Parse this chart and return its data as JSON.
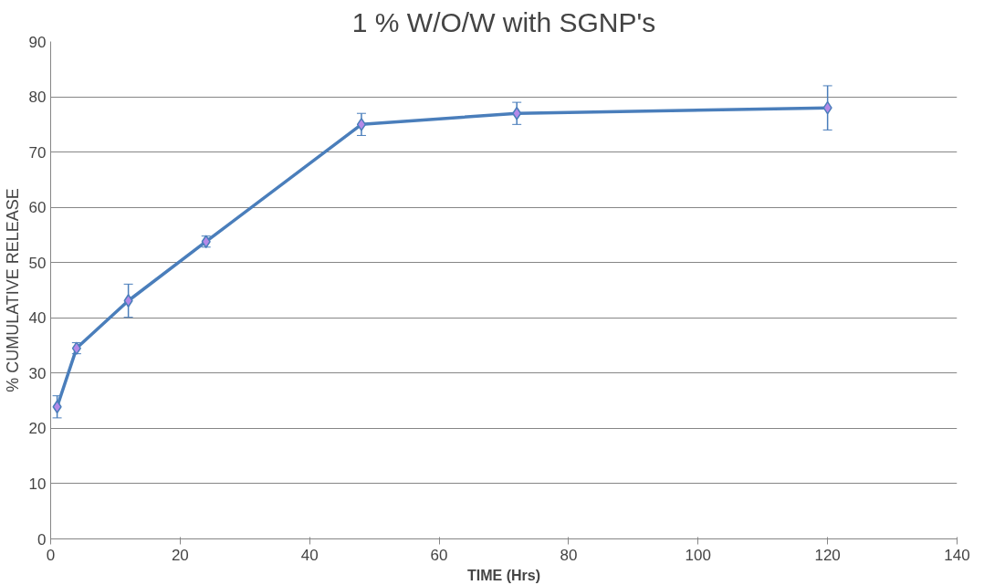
{
  "chart_data": {
    "type": "line",
    "title": "1 % W/O/W with SGNP's",
    "xlabel": "TIME (Hrs)",
    "ylabel": "% CUMULATIVE RELEASE",
    "x": [
      1,
      4,
      12,
      24,
      48,
      72,
      120
    ],
    "series": [
      {
        "color": "#4a7ebb",
        "values": [
          23.9,
          34.5,
          43.1,
          53.8,
          75,
          77,
          78
        ],
        "errors": [
          2,
          1,
          3,
          1,
          2,
          2,
          4
        ]
      }
    ],
    "xlim": [
      0,
      140
    ],
    "xticks": [
      0,
      20,
      40,
      60,
      80,
      100,
      120,
      140
    ],
    "ylim": [
      0,
      90
    ],
    "yticks": [
      0,
      10,
      20,
      30,
      40,
      50,
      60,
      70,
      80,
      90
    ],
    "grid": "y",
    "marker": "diamond",
    "line_style": "solid"
  }
}
